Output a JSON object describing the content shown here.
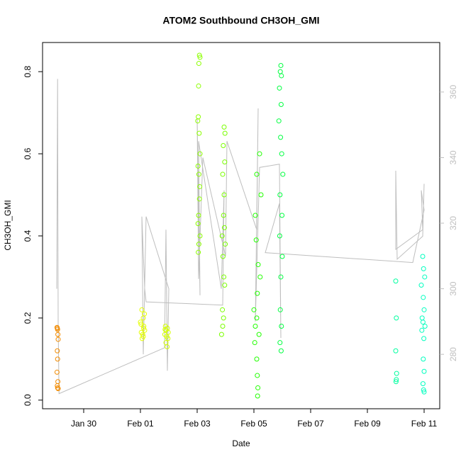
{
  "chart_data": {
    "type": "scatter",
    "title": "ATOM2 Southbound CH3OH_GMI",
    "x_label": "Date",
    "y_label": "CH3OH_GMI",
    "xlim": [
      28.55,
      42.55
    ],
    "xticks": [
      {
        "value": 30,
        "label": "Jan 30"
      },
      {
        "value": 32,
        "label": "Feb 01"
      },
      {
        "value": 34,
        "label": "Feb 03"
      },
      {
        "value": 36,
        "label": "Feb 05"
      },
      {
        "value": 38,
        "label": "Feb 07"
      },
      {
        "value": 40,
        "label": "Feb 09"
      },
      {
        "value": 42,
        "label": "Feb 11"
      }
    ],
    "ylim": [
      -0.021,
      0.871
    ],
    "yticks": [
      {
        "value": 0,
        "label": "0.0"
      },
      0.2,
      0.4,
      0.6,
      0.8
    ],
    "y2lim": [
      263.4,
      375.1
    ],
    "y2ticks": [
      280,
      300,
      320,
      340,
      360
    ],
    "y2_color": "#bebebe",
    "series": [
      {
        "color": "#f28b00",
        "x": [
          29.06,
          29.07,
          29.08,
          29.09,
          29.1,
          29.07,
          29.08,
          29.06,
          29.09,
          29.07,
          29.08,
          29.1
        ],
        "values": [
          0.177,
          0.175,
          0.172,
          0.16,
          0.148,
          0.12,
          0.1,
          0.068,
          0.045,
          0.035,
          0.03,
          0.028
        ]
      },
      {
        "color": "#e5ff00",
        "x": [
          32.05,
          32.1,
          32.0,
          32.12,
          32.15,
          32.03,
          32.08,
          32.1,
          32.06,
          32.14,
          32.02,
          32.11
        ],
        "values": [
          0.22,
          0.2,
          0.19,
          0.18,
          0.17,
          0.165,
          0.16,
          0.155,
          0.15,
          0.21,
          0.185,
          0.175
        ]
      },
      {
        "color": "#d4ff00",
        "x": [
          32.88,
          32.95,
          32.9,
          32.98,
          32.86,
          32.93,
          32.97,
          32.9,
          32.94,
          32.87
        ],
        "values": [
          0.18,
          0.175,
          0.17,
          0.165,
          0.16,
          0.155,
          0.15,
          0.14,
          0.13,
          0.172
        ]
      },
      {
        "color": "#8cff00",
        "x": [
          34.08,
          34.1,
          34.06,
          34.05,
          34.04,
          34.02,
          34.07,
          34.1,
          34.03,
          34.06,
          34.09,
          34.08,
          34.05,
          34.03,
          34.1,
          34.06,
          34.04
        ],
        "values": [
          0.84,
          0.835,
          0.82,
          0.765,
          0.69,
          0.68,
          0.65,
          0.6,
          0.57,
          0.55,
          0.52,
          0.49,
          0.45,
          0.43,
          0.4,
          0.38,
          0.36
        ]
      },
      {
        "color": "#7aff00",
        "x": [
          34.95,
          34.98,
          34.92,
          34.97,
          34.9,
          34.95,
          34.93,
          34.96,
          34.88,
          34.99,
          34.91,
          34.94,
          34.97,
          34.89,
          34.93,
          34.9,
          34.86
        ],
        "values": [
          0.665,
          0.65,
          0.62,
          0.58,
          0.55,
          0.5,
          0.45,
          0.42,
          0.4,
          0.38,
          0.35,
          0.3,
          0.28,
          0.22,
          0.2,
          0.18,
          0.16
        ]
      },
      {
        "color": "#22ff00",
        "x": [
          36.2,
          36.1,
          36.25,
          36.05,
          36.08,
          36.15,
          36.22,
          36.12,
          36.0,
          36.1,
          36.05,
          36.18,
          36.03,
          36.1,
          36.12,
          36.14,
          36.13
        ],
        "values": [
          0.6,
          0.55,
          0.5,
          0.45,
          0.39,
          0.33,
          0.3,
          0.26,
          0.22,
          0.2,
          0.18,
          0.16,
          0.14,
          0.1,
          0.06,
          0.03,
          0.01
        ]
      },
      {
        "color": "#00ff40",
        "x": [
          36.95,
          36.93,
          36.97,
          36.9,
          36.96,
          36.88,
          36.94,
          36.98,
          37.02,
          36.92,
          36.99,
          36.91,
          37.0,
          36.95,
          36.93,
          36.97,
          36.92,
          36.96
        ],
        "values": [
          0.815,
          0.8,
          0.79,
          0.76,
          0.72,
          0.68,
          0.64,
          0.6,
          0.55,
          0.5,
          0.45,
          0.4,
          0.35,
          0.3,
          0.22,
          0.18,
          0.14,
          0.12
        ]
      },
      {
        "color": "#00ffa0",
        "x": [
          41.0,
          41.02,
          41.0,
          41.03,
          41.02,
          41.01
        ],
        "values": [
          0.29,
          0.2,
          0.12,
          0.065,
          0.05,
          0.045
        ]
      },
      {
        "color": "#00ffbf",
        "x": [
          41.95,
          41.98,
          42.02,
          41.9,
          41.97,
          42.0,
          41.93,
          41.96,
          42.03,
          41.92,
          41.99,
          41.97,
          42.0,
          41.96,
          41.98,
          42.0
        ],
        "values": [
          0.35,
          0.32,
          0.3,
          0.28,
          0.25,
          0.22,
          0.2,
          0.19,
          0.18,
          0.17,
          0.15,
          0.1,
          0.07,
          0.04,
          0.025,
          0.02
        ]
      },
      {
        "color": "#bebebe",
        "type": "line",
        "axis": "y2",
        "x": [
          29.05,
          29.08,
          29.1,
          29.13,
          32.85,
          32.9,
          32.95,
          33.0,
          32.2,
          32.1,
          32.05,
          32.15,
          32.2,
          34.9,
          34.95,
          34.85,
          34.05,
          34.1,
          34.0,
          34.05,
          34.2,
          35.0,
          35.05,
          36.1,
          36.15,
          36.05,
          36.2,
          36.9,
          36.95,
          36.9,
          36.4,
          41.6,
          42.0,
          41.9,
          41.95,
          41.0,
          41.0,
          41.05,
          41.95,
          42.0
        ],
        "values": [
          300,
          364,
          290,
          268,
          282,
          318,
          275,
          300,
          322,
          280,
          322,
          300,
          296,
          295,
          330,
          300,
          345,
          298,
          352,
          303,
          340,
          310,
          345,
          318,
          355,
          290,
          337,
          338,
          285,
          326,
          311,
          308,
          324,
          330,
          318,
          312,
          336,
          309,
          316,
          332
        ]
      }
    ]
  }
}
